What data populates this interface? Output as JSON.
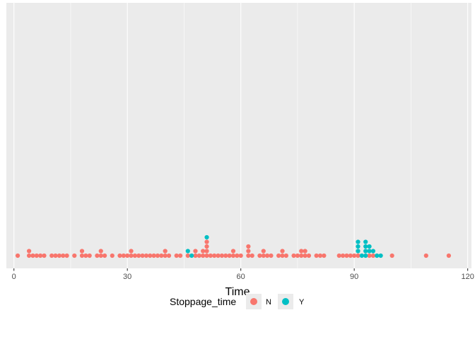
{
  "chart_data": {
    "type": "dotplot",
    "xlabel": "Time",
    "xlim": [
      -2,
      121
    ],
    "x_ticks": [
      0,
      30,
      60,
      90,
      120
    ],
    "x_tick_labels": [
      "0",
      "30",
      "60",
      "90",
      "120"
    ],
    "x_minor_ticks": [
      15,
      45,
      75,
      105
    ],
    "grid": true,
    "legend": {
      "title": "Stoppage_time",
      "position": "bottom"
    },
    "series": [
      {
        "name": "N",
        "color": "#F8766D",
        "points": [
          [
            1,
            1
          ],
          [
            4,
            2
          ],
          [
            5,
            1
          ],
          [
            6,
            1
          ],
          [
            7,
            1
          ],
          [
            8,
            1
          ],
          [
            10,
            1
          ],
          [
            11,
            1
          ],
          [
            12,
            1
          ],
          [
            13,
            1
          ],
          [
            14,
            1
          ],
          [
            16,
            1
          ],
          [
            18,
            2
          ],
          [
            19,
            1
          ],
          [
            20,
            1
          ],
          [
            22,
            1
          ],
          [
            23,
            2
          ],
          [
            24,
            1
          ],
          [
            26,
            1
          ],
          [
            28,
            1
          ],
          [
            29,
            1
          ],
          [
            30,
            1
          ],
          [
            31,
            2
          ],
          [
            32,
            1
          ],
          [
            33,
            1
          ],
          [
            34,
            1
          ],
          [
            35,
            1
          ],
          [
            36,
            1
          ],
          [
            37,
            1
          ],
          [
            38,
            1
          ],
          [
            39,
            1
          ],
          [
            40,
            2
          ],
          [
            41,
            1
          ],
          [
            43,
            1
          ],
          [
            44,
            1
          ],
          [
            46,
            1
          ],
          [
            48,
            2
          ],
          [
            49,
            1
          ],
          [
            50,
            2
          ],
          [
            51,
            4
          ],
          [
            52,
            1
          ],
          [
            53,
            1
          ],
          [
            54,
            1
          ],
          [
            55,
            1
          ],
          [
            56,
            1
          ],
          [
            57,
            1
          ],
          [
            58,
            2
          ],
          [
            59,
            1
          ],
          [
            60,
            1
          ],
          [
            62,
            3
          ],
          [
            63,
            1
          ],
          [
            65,
            1
          ],
          [
            66,
            2
          ],
          [
            67,
            1
          ],
          [
            68,
            1
          ],
          [
            70,
            1
          ],
          [
            71,
            2
          ],
          [
            72,
            1
          ],
          [
            74,
            1
          ],
          [
            75,
            1
          ],
          [
            76,
            2
          ],
          [
            77,
            2
          ],
          [
            78,
            1
          ],
          [
            80,
            1
          ],
          [
            81,
            1
          ],
          [
            82,
            1
          ],
          [
            86,
            1
          ],
          [
            87,
            1
          ],
          [
            88,
            1
          ],
          [
            89,
            1
          ],
          [
            90,
            1
          ],
          [
            91,
            1
          ],
          [
            94,
            1
          ],
          [
            95,
            1
          ],
          [
            100,
            1
          ],
          [
            109,
            1
          ],
          [
            115,
            1
          ]
        ]
      },
      {
        "name": "Y",
        "color": "#00BFC4",
        "points": [
          [
            46,
            1
          ],
          [
            47,
            1
          ],
          [
            51,
            1
          ],
          [
            91,
            3
          ],
          [
            92,
            1
          ],
          [
            93,
            4
          ],
          [
            94,
            2
          ],
          [
            95,
            1
          ],
          [
            96,
            1
          ],
          [
            97,
            1
          ]
        ]
      }
    ]
  }
}
